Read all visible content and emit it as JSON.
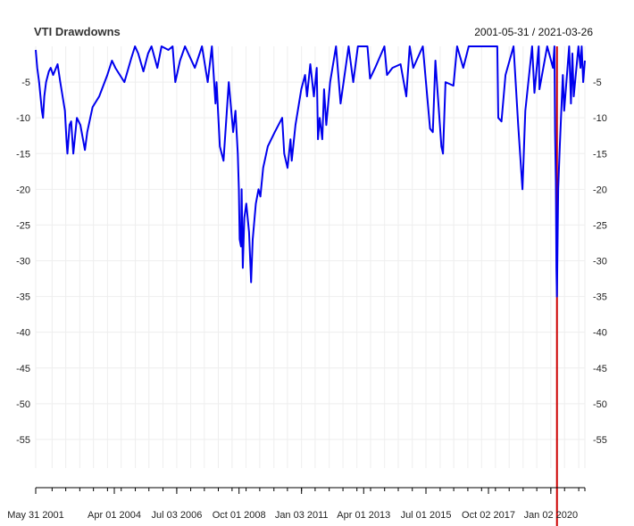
{
  "chart_data": {
    "type": "line",
    "title": "VTI Drawdowns",
    "date_range_label": "2001-05-31 / 2021-03-26",
    "xlabel": "",
    "ylabel": "",
    "x_range": [
      "2001-05-31",
      "2021-03-26"
    ],
    "ylim": [
      -59,
      0
    ],
    "y_ticks": [
      -5,
      -10,
      -15,
      -20,
      -25,
      -30,
      -35,
      -40,
      -45,
      -50,
      -55
    ],
    "x_tick_labels": [
      {
        "date": "2001-05-31",
        "label": "May 31 2001"
      },
      {
        "date": "2004-04-01",
        "label": "Apr 01 2004"
      },
      {
        "date": "2006-07-03",
        "label": "Jul 03 2006"
      },
      {
        "date": "2008-10-01",
        "label": "Oct 01 2008"
      },
      {
        "date": "2011-01-03",
        "label": "Jan 03 2011"
      },
      {
        "date": "2013-04-01",
        "label": "Apr 01 2013"
      },
      {
        "date": "2015-07-01",
        "label": "Jul 01 2015"
      },
      {
        "date": "2017-10-02",
        "label": "Oct 02 2017"
      },
      {
        "date": "2020-01-02",
        "label": "Jan 02 2020"
      }
    ],
    "x_minor_tick_dates": [
      "2001-05-31",
      "2002-01-02",
      "2002-07-01",
      "2003-01-02",
      "2003-07-01",
      "2004-01-02",
      "2004-07-01",
      "2005-01-03",
      "2005-07-01",
      "2006-01-03",
      "2006-07-03",
      "2007-01-03",
      "2007-07-02",
      "2008-01-02",
      "2008-07-01",
      "2009-01-02",
      "2009-07-01",
      "2010-01-04",
      "2010-07-01",
      "2011-01-03",
      "2011-07-01",
      "2012-01-03",
      "2012-07-02",
      "2013-01-02",
      "2013-07-01",
      "2014-01-02",
      "2014-07-01",
      "2015-01-02",
      "2015-07-01",
      "2016-01-04",
      "2016-07-01",
      "2017-01-03",
      "2017-07-03",
      "2018-01-02",
      "2018-07-02",
      "2019-01-02",
      "2019-07-01",
      "2020-01-02",
      "2020-07-01",
      "2021-01-04",
      "2021-03-26"
    ],
    "grid": true,
    "legend": "none",
    "line_color": "#0000ee",
    "event_line": {
      "date": "2020-03-23",
      "color": "#cc0000"
    },
    "series": [
      {
        "values": [
          [
            "2001-05-31",
            -0.5
          ],
          [
            "2001-06-20",
            -3
          ],
          [
            "2001-07-15",
            -5
          ],
          [
            "2001-08-20",
            -9
          ],
          [
            "2001-09-05",
            -10
          ],
          [
            "2001-09-21",
            -7
          ],
          [
            "2001-10-15",
            -5
          ],
          [
            "2001-11-20",
            -3.5
          ],
          [
            "2001-12-15",
            -3
          ],
          [
            "2002-01-15",
            -4
          ],
          [
            "2002-03-15",
            -2.5
          ],
          [
            "2002-04-20",
            -5
          ],
          [
            "2002-05-20",
            -7
          ],
          [
            "2002-06-20",
            -9
          ],
          [
            "2002-07-10",
            -13
          ],
          [
            "2002-07-23",
            -15
          ],
          [
            "2002-08-20",
            -11
          ],
          [
            "2002-09-10",
            -10.5
          ],
          [
            "2002-10-09",
            -15
          ],
          [
            "2002-11-25",
            -10
          ],
          [
            "2003-01-10",
            -11
          ],
          [
            "2003-03-11",
            -14.5
          ],
          [
            "2003-04-10",
            -12
          ],
          [
            "2003-05-20",
            -10
          ],
          [
            "2003-06-20",
            -8.5
          ],
          [
            "2003-09-15",
            -7
          ],
          [
            "2003-12-31",
            -4
          ],
          [
            "2004-03-01",
            -2
          ],
          [
            "2004-04-15",
            -3
          ],
          [
            "2004-08-12",
            -5
          ],
          [
            "2004-11-15",
            -1.5
          ],
          [
            "2004-12-30",
            0
          ],
          [
            "2005-02-10",
            -1
          ],
          [
            "2005-04-20",
            -3.5
          ],
          [
            "2005-06-20",
            -1
          ],
          [
            "2005-08-05",
            0
          ],
          [
            "2005-10-20",
            -3
          ],
          [
            "2005-12-15",
            0
          ],
          [
            "2006-03-15",
            -0.5
          ],
          [
            "2006-05-10",
            0
          ],
          [
            "2006-06-14",
            -5
          ],
          [
            "2006-08-15",
            -2
          ],
          [
            "2006-10-20",
            0
          ],
          [
            "2007-02-27",
            -3
          ],
          [
            "2007-03-15",
            -2.5
          ],
          [
            "2007-06-01",
            0
          ],
          [
            "2007-08-15",
            -5
          ],
          [
            "2007-10-09",
            0
          ],
          [
            "2007-11-26",
            -8
          ],
          [
            "2007-12-10",
            -5
          ],
          [
            "2008-01-22",
            -14
          ],
          [
            "2008-03-10",
            -16
          ],
          [
            "2008-05-19",
            -5
          ],
          [
            "2008-07-15",
            -12
          ],
          [
            "2008-08-15",
            -9
          ],
          [
            "2008-09-15",
            -15
          ],
          [
            "2008-09-29",
            -20
          ],
          [
            "2008-10-10",
            -27
          ],
          [
            "2008-10-27",
            -28
          ],
          [
            "2008-11-04",
            -20
          ],
          [
            "2008-11-20",
            -31
          ],
          [
            "2008-12-10",
            -24
          ],
          [
            "2009-01-05",
            -22
          ],
          [
            "2009-02-10",
            -26
          ],
          [
            "2009-03-09",
            -33
          ],
          [
            "2009-03-30",
            -27
          ],
          [
            "2009-05-10",
            -22
          ],
          [
            "2009-06-15",
            -20
          ],
          [
            "2009-07-10",
            -21
          ],
          [
            "2009-08-15",
            -17
          ],
          [
            "2009-10-15",
            -14
          ],
          [
            "2010-01-15",
            -12
          ],
          [
            "2010-04-23",
            -10
          ],
          [
            "2010-05-20",
            -15
          ],
          [
            "2010-07-02",
            -17
          ],
          [
            "2010-08-10",
            -13
          ],
          [
            "2010-08-27",
            -16
          ],
          [
            "2010-10-15",
            -11
          ],
          [
            "2010-12-31",
            -6
          ],
          [
            "2011-02-18",
            -4
          ],
          [
            "2011-03-16",
            -7
          ],
          [
            "2011-04-29",
            -2.5
          ],
          [
            "2011-06-15",
            -7
          ],
          [
            "2011-07-22",
            -3
          ],
          [
            "2011-08-08",
            -13
          ],
          [
            "2011-08-30",
            -10
          ],
          [
            "2011-10-03",
            -13
          ],
          [
            "2011-10-27",
            -6
          ],
          [
            "2011-11-25",
            -11
          ],
          [
            "2012-01-15",
            -5
          ],
          [
            "2012-04-02",
            0
          ],
          [
            "2012-06-01",
            -8
          ],
          [
            "2012-09-14",
            0
          ],
          [
            "2012-11-15",
            -5
          ],
          [
            "2013-01-15",
            0
          ],
          [
            "2013-05-21",
            0
          ],
          [
            "2013-06-24",
            -4.5
          ],
          [
            "2013-08-30",
            -3
          ],
          [
            "2013-12-31",
            0
          ],
          [
            "2014-02-03",
            -4
          ],
          [
            "2014-04-15",
            -3
          ],
          [
            "2014-07-31",
            -2.5
          ],
          [
            "2014-10-15",
            -7
          ],
          [
            "2014-11-28",
            0
          ],
          [
            "2015-01-15",
            -3
          ],
          [
            "2015-05-21",
            0
          ],
          [
            "2015-08-24",
            -11.5
          ],
          [
            "2015-09-29",
            -12
          ],
          [
            "2015-11-03",
            -2
          ],
          [
            "2016-01-20",
            -14
          ],
          [
            "2016-02-11",
            -15
          ],
          [
            "2016-03-15",
            -5
          ],
          [
            "2016-06-27",
            -5.5
          ],
          [
            "2016-08-15",
            0
          ],
          [
            "2016-11-04",
            -3
          ],
          [
            "2017-01-15",
            0
          ],
          [
            "2017-06-15",
            0
          ],
          [
            "2017-12-15",
            0
          ],
          [
            "2018-01-26",
            0
          ],
          [
            "2018-02-08",
            -10
          ],
          [
            "2018-03-23",
            -10.5
          ],
          [
            "2018-05-15",
            -4
          ],
          [
            "2018-08-29",
            0
          ],
          [
            "2018-10-29",
            -11
          ],
          [
            "2018-12-24",
            -20
          ],
          [
            "2019-01-31",
            -9
          ],
          [
            "2019-04-30",
            0
          ],
          [
            "2019-05-31",
            -6.5
          ],
          [
            "2019-07-26",
            0
          ],
          [
            "2019-08-05",
            -6
          ],
          [
            "2019-11-15",
            0
          ],
          [
            "2020-01-31",
            -3
          ],
          [
            "2020-02-19",
            0
          ],
          [
            "2020-02-27",
            -12
          ],
          [
            "2020-03-09",
            -19
          ],
          [
            "2020-03-16",
            -31
          ],
          [
            "2020-03-23",
            -35
          ],
          [
            "2020-04-08",
            -20
          ],
          [
            "2020-04-29",
            -14
          ],
          [
            "2020-06-08",
            -4
          ],
          [
            "2020-06-26",
            -9
          ],
          [
            "2020-08-31",
            0
          ],
          [
            "2020-09-23",
            -8
          ],
          [
            "2020-10-12",
            -1
          ],
          [
            "2020-10-30",
            -7
          ],
          [
            "2020-12-31",
            0
          ],
          [
            "2021-01-27",
            -3
          ],
          [
            "2021-02-12",
            0
          ],
          [
            "2021-03-04",
            -5
          ],
          [
            "2021-03-26",
            -2
          ]
        ]
      }
    ]
  }
}
